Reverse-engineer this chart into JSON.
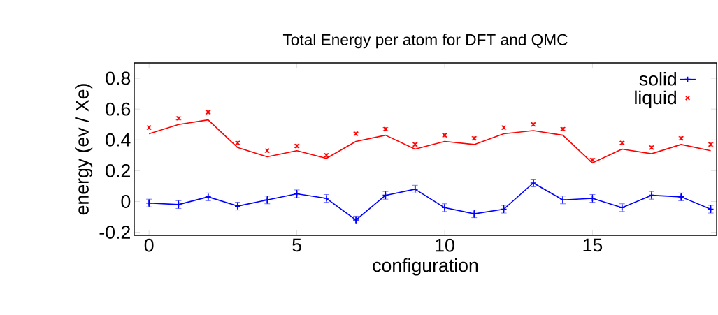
{
  "chart_data": {
    "type": "line",
    "title": "Total Energy per atom for DFT and QMC",
    "xlabel": "configuration",
    "ylabel": "energy (ev / Xe)",
    "x": [
      0,
      1,
      2,
      3,
      4,
      5,
      6,
      7,
      8,
      9,
      10,
      11,
      12,
      13,
      14,
      15,
      16,
      17,
      18,
      19
    ],
    "series": [
      {
        "name": "solid",
        "color": "#0000ff",
        "marker": "plus",
        "values": [
          -0.01,
          -0.02,
          0.03,
          -0.03,
          0.01,
          0.05,
          0.02,
          -0.12,
          0.04,
          0.08,
          -0.04,
          -0.08,
          -0.05,
          0.12,
          0.01,
          0.02,
          -0.04,
          0.04,
          0.03,
          -0.05
        ],
        "errors": [
          0.025,
          0.025,
          0.025,
          0.025,
          0.025,
          0.025,
          0.025,
          0.025,
          0.025,
          0.025,
          0.025,
          0.025,
          0.025,
          0.025,
          0.025,
          0.025,
          0.025,
          0.025,
          0.025,
          0.025
        ]
      },
      {
        "color": "#ff0000",
        "marker": "none",
        "values": [
          0.44,
          0.5,
          0.53,
          0.35,
          0.29,
          0.33,
          0.28,
          0.39,
          0.43,
          0.34,
          0.39,
          0.37,
          0.44,
          0.46,
          0.43,
          0.25,
          0.34,
          0.31,
          0.37,
          0.33
        ]
      },
      {
        "name": "liquid",
        "color": "#ff0000",
        "type": "scatter",
        "marker": "cross",
        "values": [
          0.48,
          0.54,
          0.58,
          0.38,
          0.33,
          0.36,
          0.3,
          0.44,
          0.47,
          0.37,
          0.43,
          0.41,
          0.48,
          0.5,
          0.47,
          0.27,
          0.38,
          0.35,
          0.41,
          0.37
        ],
        "errors": [
          0.01,
          0.01,
          0.01,
          0.01,
          0.01,
          0.01,
          0.01,
          0.01,
          0.01,
          0.01,
          0.01,
          0.01,
          0.01,
          0.01,
          0.01,
          0.01,
          0.01,
          0.01,
          0.01,
          0.01
        ]
      }
    ],
    "xlim": [
      -0.5,
      19.2
    ],
    "ylim": [
      -0.22,
      0.9
    ],
    "xticks": [
      0,
      5,
      10,
      15
    ],
    "yticks": [
      -0.2,
      0,
      0.2,
      0.4,
      0.6,
      0.8
    ],
    "legend": "top right",
    "grid": false
  }
}
